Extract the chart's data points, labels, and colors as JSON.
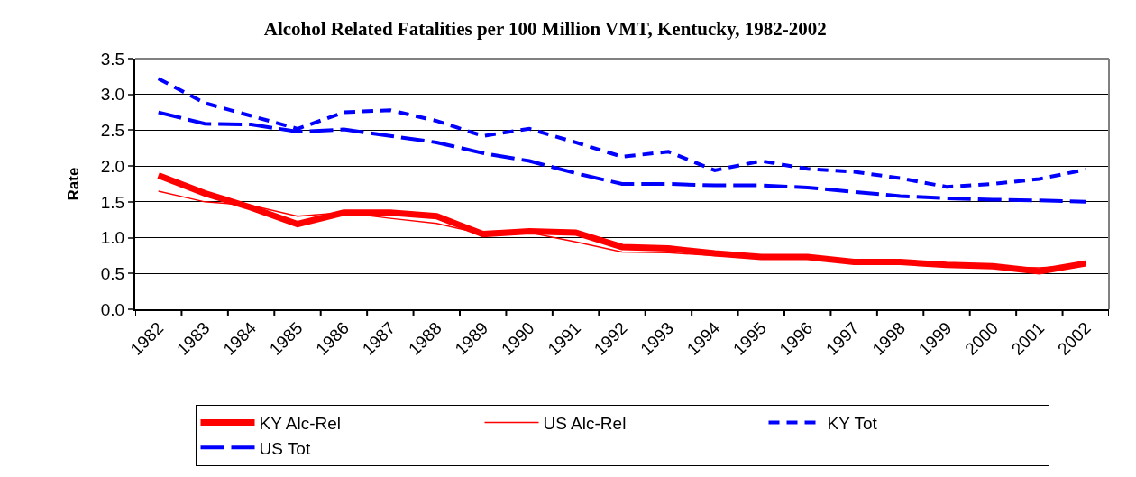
{
  "chart_data": {
    "type": "line",
    "title": "Alcohol Related Fatalities per 100 Million VMT, Kentucky, 1982-2002",
    "ylabel": "Rate",
    "categories": [
      "1982",
      "1983",
      "1984",
      "1985",
      "1986",
      "1987",
      "1988",
      "1989",
      "1990",
      "1991",
      "1992",
      "1993",
      "1994",
      "1995",
      "1996",
      "1997",
      "1998",
      "1999",
      "2000",
      "2001",
      "2002"
    ],
    "ylim": [
      0,
      3.5
    ],
    "yticks": [
      {
        "value": 0,
        "label": "0.0"
      },
      0.5,
      {
        "value": 1,
        "label": "1.0"
      },
      1.5,
      {
        "value": 2,
        "label": "2.0"
      },
      2.5,
      {
        "value": 3,
        "label": "3.0"
      },
      3.5
    ],
    "grid": "y",
    "legend": "bottom",
    "marker": "none",
    "series": [
      {
        "name": "KY Alc-Rel",
        "color": "#ff0000",
        "line_style": "solid",
        "values": [
          1.87,
          1.62,
          1.42,
          1.19,
          1.35,
          1.35,
          1.3,
          1.05,
          1.09,
          1.07,
          0.87,
          0.85,
          0.78,
          0.73,
          0.73,
          0.66,
          0.66,
          0.62,
          0.6,
          0.53,
          0.64
        ]
      },
      {
        "name": "US Alc-Rel",
        "color": "#ff0000",
        "line_style": "solid",
        "values": [
          1.65,
          1.5,
          1.45,
          1.3,
          1.35,
          1.27,
          1.2,
          1.05,
          1.07,
          0.94,
          0.8,
          0.79,
          0.75,
          0.73,
          0.72,
          0.67,
          0.65,
          0.62,
          0.59,
          0.58,
          0.62
        ]
      },
      {
        "name": "KY Tot",
        "color": "#0000ff",
        "line_style": "dotted",
        "values": [
          3.22,
          2.88,
          2.7,
          2.52,
          2.75,
          2.78,
          2.63,
          2.42,
          2.52,
          2.33,
          2.13,
          2.2,
          1.94,
          2.07,
          1.96,
          1.92,
          1.83,
          1.71,
          1.75,
          1.82,
          1.95
        ]
      },
      {
        "name": "US Tot",
        "color": "#0000ff",
        "line_style": "dashed",
        "values": [
          2.75,
          2.59,
          2.58,
          2.48,
          2.51,
          2.42,
          2.33,
          2.18,
          2.07,
          1.9,
          1.75,
          1.75,
          1.73,
          1.73,
          1.7,
          1.64,
          1.58,
          1.55,
          1.53,
          1.52,
          1.5
        ]
      }
    ]
  }
}
